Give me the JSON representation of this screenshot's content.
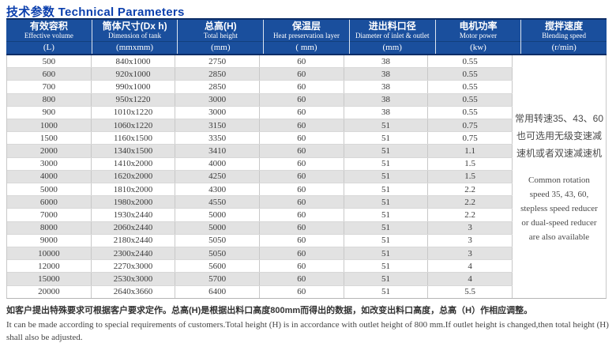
{
  "page": {
    "title": "技术参数  Technical Parameters"
  },
  "colors": {
    "title_blue": "#0b3fad",
    "header_blue": "#1a4f9d",
    "header_border_navy": "#0c2d66",
    "stripe_gray": "#e2e2e2"
  },
  "table": {
    "columns": [
      {
        "zh": "有效容积",
        "en": "Effective volume",
        "unit": "(L)"
      },
      {
        "zh": "筒体尺寸(Dx h)",
        "en": "Dimension of tank",
        "unit": "(mmxmm)"
      },
      {
        "zh": "总高(H)",
        "en": "Total height",
        "unit": "(mm)"
      },
      {
        "zh": "保温层",
        "en": "Heat preservation layer",
        "unit": "( mm)"
      },
      {
        "zh": "进出料口径",
        "en": "Diameter of inlet & outlet",
        "unit": "(mm)"
      },
      {
        "zh": "电机功率",
        "en": "Motor power",
        "unit": "(kw)"
      },
      {
        "zh": "搅拌速度",
        "en": "Blending speed",
        "unit": "(r/min)"
      }
    ],
    "rows": [
      [
        "500",
        "840x1000",
        "2750",
        "60",
        "38",
        "0.55"
      ],
      [
        "600",
        "920x1000",
        "2850",
        "60",
        "38",
        "0.55"
      ],
      [
        "700",
        "990x1000",
        "2850",
        "60",
        "38",
        "0.55"
      ],
      [
        "800",
        "950x1220",
        "3000",
        "60",
        "38",
        "0.55"
      ],
      [
        "900",
        "1010x1220",
        "3000",
        "60",
        "38",
        "0.55"
      ],
      [
        "1000",
        "1060x1220",
        "3150",
        "60",
        "51",
        "0.75"
      ],
      [
        "1500",
        "1160x1500",
        "3350",
        "60",
        "51",
        "0.75"
      ],
      [
        "2000",
        "1340x1500",
        "3410",
        "60",
        "51",
        "1.1"
      ],
      [
        "3000",
        "1410x2000",
        "4000",
        "60",
        "51",
        "1.5"
      ],
      [
        "4000",
        "1620x2000",
        "4250",
        "60",
        "51",
        "1.5"
      ],
      [
        "5000",
        "1810x2000",
        "4300",
        "60",
        "51",
        "2.2"
      ],
      [
        "6000",
        "1980x2000",
        "4550",
        "60",
        "51",
        "2.2"
      ],
      [
        "7000",
        "1930x2440",
        "5000",
        "60",
        "51",
        "2.2"
      ],
      [
        "8000",
        "2060x2440",
        "5000",
        "60",
        "51",
        "3"
      ],
      [
        "9000",
        "2180x2440",
        "5050",
        "60",
        "51",
        "3"
      ],
      [
        "10000",
        "2300x2440",
        "5050",
        "60",
        "51",
        "3"
      ],
      [
        "12000",
        "2270x3000",
        "5600",
        "60",
        "51",
        "4"
      ],
      [
        "15000",
        "2530x3000",
        "5700",
        "60",
        "51",
        "4"
      ],
      [
        "20000",
        "2640x3660",
        "6400",
        "60",
        "51",
        "5.5"
      ]
    ],
    "blending": {
      "zh_lines": [
        "常用转速35、43、60",
        "也可选用无级变速减",
        "速机或者双速减速机"
      ],
      "en": "Common rotation speed 35, 43, 60, stepless speed reducer or dual-speed reducer are also available"
    }
  },
  "footer": {
    "zh": "如客户提出特殊要求可根据客户要求定作。总高(H)是根据出料口高度800mm而得出的数据，如改变出料口高度，总高（H）作相应调整。",
    "en": "It can be made according to special requirements of customers.Total height (H) is in accordance with outlet height of 800 mm.If outlet height is changed,then total height (H) shall also be adjusted."
  }
}
